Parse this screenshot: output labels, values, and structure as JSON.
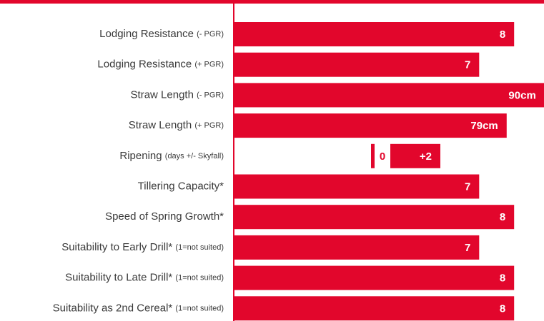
{
  "chart_data": {
    "type": "bar",
    "color": "#e2062c",
    "categories": [
      "Lodging Resistance",
      "Lodging Resistance",
      "Straw Length",
      "Straw Length",
      "Ripening",
      "Tillering Capacity*",
      "Speed of Spring Growth*",
      "Suitability to Early Drill*",
      "Suitability to Late Drill*",
      "Suitability as 2nd Cereal*"
    ],
    "category_notes": [
      "(- PGR)",
      "(+ PGR)",
      "(- PGR)",
      "(+ PGR)",
      "(days +/- Skyfall)",
      null,
      null,
      "(1=not suited)",
      "(1=not suited)",
      "(1=not suited)"
    ],
    "values": [
      8,
      7,
      90,
      79,
      2,
      7,
      8,
      7,
      8,
      8
    ],
    "value_labels": [
      "8",
      "7",
      "90cm",
      "79cm",
      "+2",
      "7",
      "8",
      "7",
      "8",
      "8"
    ],
    "ripening_reference": 0
  }
}
